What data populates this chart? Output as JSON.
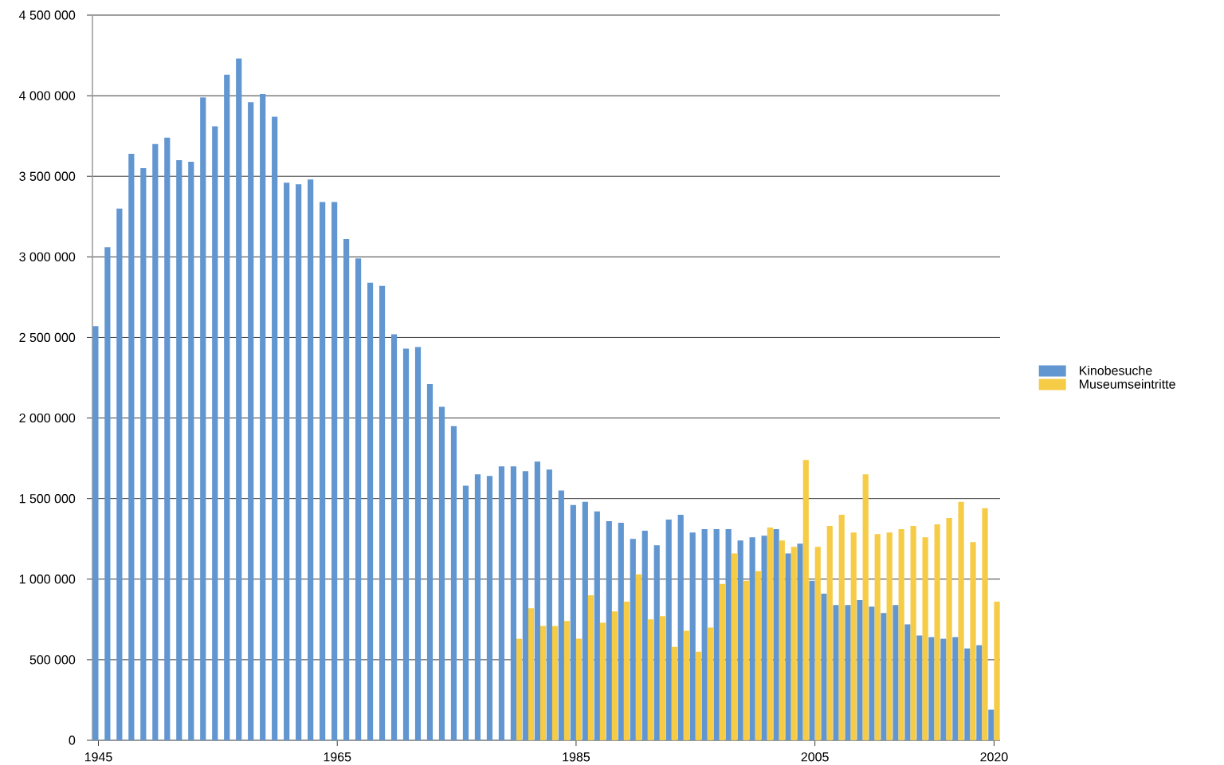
{
  "chart_data": {
    "type": "bar",
    "x": [
      1945,
      1946,
      1947,
      1948,
      1949,
      1950,
      1951,
      1952,
      1953,
      1954,
      1955,
      1956,
      1957,
      1958,
      1959,
      1960,
      1961,
      1962,
      1963,
      1964,
      1965,
      1966,
      1967,
      1968,
      1969,
      1970,
      1971,
      1972,
      1973,
      1974,
      1975,
      1976,
      1977,
      1978,
      1979,
      1980,
      1981,
      1982,
      1983,
      1984,
      1985,
      1986,
      1987,
      1988,
      1989,
      1990,
      1991,
      1992,
      1993,
      1994,
      1995,
      1996,
      1997,
      1998,
      1999,
      2000,
      2001,
      2002,
      2003,
      2004,
      2005,
      2006,
      2007,
      2008,
      2009,
      2010,
      2011,
      2012,
      2013,
      2014,
      2015,
      2016,
      2017,
      2018,
      2019,
      2020
    ],
    "series": [
      {
        "name": "Kinobesuche",
        "color": "#6196d0",
        "values": [
          2570000,
          3060000,
          3300000,
          3640000,
          3550000,
          3700000,
          3740000,
          3600000,
          3590000,
          3990000,
          3810000,
          4130000,
          4230000,
          3960000,
          4010000,
          3870000,
          3460000,
          3450000,
          3480000,
          3340000,
          3340000,
          3110000,
          2990000,
          2840000,
          2820000,
          2520000,
          2430000,
          2440000,
          2210000,
          2070000,
          1950000,
          1580000,
          1650000,
          1640000,
          1700000,
          1700000,
          1670000,
          1730000,
          1680000,
          1550000,
          1460000,
          1480000,
          1420000,
          1360000,
          1350000,
          1250000,
          1300000,
          1210000,
          1370000,
          1400000,
          1290000,
          1310000,
          1310000,
          1310000,
          1240000,
          1260000,
          1270000,
          1310000,
          1160000,
          1220000,
          990000,
          910000,
          840000,
          840000,
          870000,
          830000,
          790000,
          840000,
          720000,
          650000,
          640000,
          630000,
          640000,
          570000,
          590000,
          190000
        ]
      },
      {
        "name": "Museumseintritte",
        "color": "#f6cb45",
        "values": [
          null,
          null,
          null,
          null,
          null,
          null,
          null,
          null,
          null,
          null,
          null,
          null,
          null,
          null,
          null,
          null,
          null,
          null,
          null,
          null,
          null,
          null,
          null,
          null,
          null,
          null,
          null,
          null,
          null,
          null,
          null,
          null,
          null,
          null,
          null,
          630000,
          820000,
          710000,
          710000,
          740000,
          630000,
          900000,
          730000,
          800000,
          860000,
          1030000,
          750000,
          770000,
          580000,
          680000,
          550000,
          700000,
          970000,
          1160000,
          990000,
          1050000,
          1320000,
          1240000,
          1200000,
          1740000,
          1200000,
          1330000,
          1400000,
          1290000,
          1650000,
          1280000,
          1290000,
          1310000,
          1330000,
          1260000,
          1340000,
          1380000,
          1480000,
          1230000,
          1440000,
          860000
        ]
      }
    ],
    "xlim": [
      1944.5,
      2020.5
    ],
    "xticks": [
      1945,
      1965,
      1985,
      2005,
      2020
    ],
    "ylim": [
      0,
      4500000
    ],
    "yticks": [
      0,
      {
        "value": 500000,
        "label": "500 000"
      },
      {
        "value": 1000000,
        "label": "1 000 000"
      },
      {
        "value": 1500000,
        "label": "1 500 000"
      },
      {
        "value": 2000000,
        "label": "2 000 000"
      },
      {
        "value": 2500000,
        "label": "2 500 000"
      },
      {
        "value": 3000000,
        "label": "3 000 000"
      },
      {
        "value": 3500000,
        "label": "3 500 000"
      },
      {
        "value": 4000000,
        "label": "4 000 000"
      },
      {
        "value": 4500000,
        "label": "4 500 000"
      }
    ],
    "grid": "y",
    "legend": "right"
  }
}
